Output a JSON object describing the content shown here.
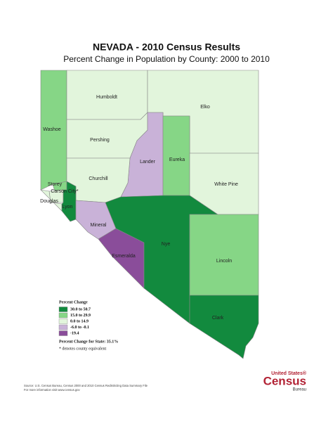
{
  "title": "NEVADA - 2010 Census Results",
  "subtitle": "Percent Change in Population by County:  2000 to 2010",
  "counties": [
    {
      "name": "Washoe",
      "color": "#86d686"
    },
    {
      "name": "Humboldt",
      "color": "#e2f5dc"
    },
    {
      "name": "Elko",
      "color": "#e2f5dc"
    },
    {
      "name": "Pershing",
      "color": "#e2f5dc"
    },
    {
      "name": "Lander",
      "color": "#c9b2d8"
    },
    {
      "name": "Eureka",
      "color": "#86d686"
    },
    {
      "name": "White Pine",
      "color": "#e2f5dc"
    },
    {
      "name": "Churchill",
      "color": "#e2f5dc"
    },
    {
      "name": "Storey",
      "color": "#86d686"
    },
    {
      "name": "Carson City*",
      "color": "#e2f5dc"
    },
    {
      "name": "Douglas",
      "color": "#e2f5dc"
    },
    {
      "name": "Lyon",
      "color": "#128a3e"
    },
    {
      "name": "Mineral",
      "color": "#c9b2d8"
    },
    {
      "name": "Esmeralda",
      "color": "#8a4d9a"
    },
    {
      "name": "Nye",
      "color": "#128a3e"
    },
    {
      "name": "Lincoln",
      "color": "#86d686"
    },
    {
      "name": "Clark",
      "color": "#128a3e"
    }
  ],
  "legend": {
    "title": "Percent Change",
    "items": [
      {
        "label": "30.0 to 50.7",
        "color": "#128a3e"
      },
      {
        "label": "15.0 to 29.9",
        "color": "#86d686"
      },
      {
        "label": "0.0 to 14.9",
        "color": "#e2f5dc"
      },
      {
        "label": "-6.0 to -0.1",
        "color": "#c9b2d8"
      },
      {
        "label": "-19.4",
        "color": "#8a4d9a"
      }
    ],
    "state_change": "Percent Change for State:  35.1%",
    "note": "* denotes county equivalent"
  },
  "source": [
    "Source:  U.S. Census Bureau, Census 2000 and 2010 Census Redistricting Data Summary File",
    "For more information visit www.census.gov"
  ],
  "logo": {
    "line1": "United States®",
    "line2": "Census",
    "line3": "Bureau"
  }
}
